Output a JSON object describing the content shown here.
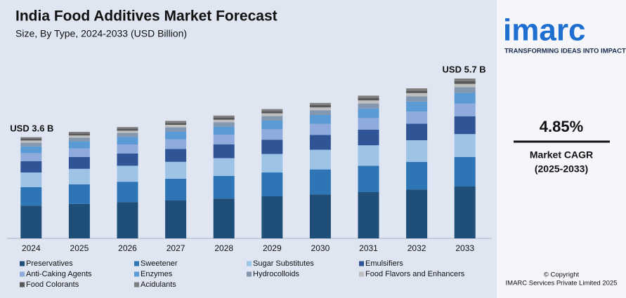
{
  "chart_data": {
    "type": "stacked-bar",
    "title": "India Food Additives Market Forecast",
    "subtitle": "Size, By Type, 2024-2033 (USD Billion)",
    "categories": [
      "2024",
      "2025",
      "2026",
      "2027",
      "2028",
      "2029",
      "2030",
      "2031",
      "2032",
      "2033"
    ],
    "series": [
      {
        "name": "Preservatives",
        "color": "#1f4e79",
        "values": [
          1.17,
          1.23,
          1.29,
          1.36,
          1.42,
          1.5,
          1.57,
          1.65,
          1.74,
          1.85
        ]
      },
      {
        "name": "Sweetener",
        "color": "#2e75b6",
        "values": [
          0.66,
          0.7,
          0.73,
          0.77,
          0.81,
          0.85,
          0.89,
          0.94,
          0.99,
          1.05
        ]
      },
      {
        "name": "Sugar Substitutes",
        "color": "#9dc3e6",
        "values": [
          0.52,
          0.55,
          0.57,
          0.6,
          0.63,
          0.66,
          0.7,
          0.73,
          0.77,
          0.82
        ]
      },
      {
        "name": "Emulsifiers",
        "color": "#2f5597",
        "values": [
          0.4,
          0.42,
          0.44,
          0.46,
          0.49,
          0.51,
          0.53,
          0.56,
          0.59,
          0.63
        ]
      },
      {
        "name": "Anti-Caking Agents",
        "color": "#8faadc",
        "values": [
          0.29,
          0.31,
          0.32,
          0.34,
          0.35,
          0.37,
          0.39,
          0.41,
          0.43,
          0.46
        ]
      },
      {
        "name": "Enzymes",
        "color": "#5b9bd5",
        "values": [
          0.24,
          0.25,
          0.27,
          0.28,
          0.29,
          0.31,
          0.32,
          0.34,
          0.36,
          0.38
        ]
      },
      {
        "name": "Hydrocolloids",
        "color": "#8497b0",
        "values": [
          0.13,
          0.13,
          0.14,
          0.15,
          0.15,
          0.16,
          0.17,
          0.18,
          0.19,
          0.2
        ]
      },
      {
        "name": "Food Flavors and Enhancers",
        "color": "#bfbfbf",
        "values": [
          0.08,
          0.08,
          0.08,
          0.09,
          0.09,
          0.1,
          0.1,
          0.11,
          0.11,
          0.12
        ]
      },
      {
        "name": "Food Colorants",
        "color": "#595959",
        "values": [
          0.06,
          0.07,
          0.07,
          0.07,
          0.08,
          0.08,
          0.08,
          0.09,
          0.09,
          0.1
        ]
      },
      {
        "name": "Acidulants",
        "color": "#7f7f7f",
        "values": [
          0.06,
          0.06,
          0.06,
          0.07,
          0.07,
          0.07,
          0.08,
          0.08,
          0.08,
          0.09
        ]
      }
    ],
    "ylim": [
      0,
      6.2
    ],
    "annotations": [
      {
        "category": "2024",
        "label": "USD 3.6 B",
        "value": 3.6
      },
      {
        "category": "2033",
        "label": "USD 5.7 B",
        "value": 5.7
      }
    ]
  },
  "side_panel": {
    "logo": "imarc",
    "tagline": "TRANSFORMING IDEAS INTO IMPACT",
    "cagr": "4.85%",
    "cagr_label": "Market CAGR",
    "cagr_period": "(2025-2033)",
    "copyright": "© Copyright",
    "company": "IMARC Services Private Limited 2025"
  }
}
